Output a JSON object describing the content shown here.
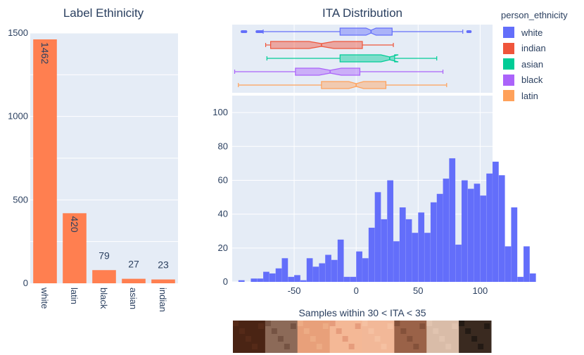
{
  "colors": {
    "plot_bg": "#e5ecf6",
    "grid": "#ffffff",
    "text": "#2a3f5f",
    "bar_orange": "#ff7f50",
    "hist_blue": "#636efa",
    "white": "#636efa",
    "indian": "#ef553b",
    "asian": "#00cc96",
    "black": "#ab63fa",
    "latin": "#ffa15a"
  },
  "legend": {
    "title": "person_ethnicity",
    "items": [
      {
        "label": "white",
        "color": "#636efa"
      },
      {
        "label": "indian",
        "color": "#ef553b"
      },
      {
        "label": "asian",
        "color": "#00cc96"
      },
      {
        "label": "black",
        "color": "#ab63fa"
      },
      {
        "label": "latin",
        "color": "#ffa15a"
      }
    ]
  },
  "chart_data": [
    {
      "type": "bar",
      "title": "Label Ethinicity",
      "categories": [
        "white",
        "latin",
        "black",
        "asian",
        "indian"
      ],
      "values": [
        1462,
        420,
        79,
        27,
        23
      ],
      "ylim": [
        0,
        1500
      ],
      "yticks": [
        0,
        500,
        1000,
        1500
      ]
    },
    {
      "type": "box",
      "title": "ITA Distribution",
      "orientation": "horizontal",
      "series": [
        {
          "name": "white",
          "min": -75,
          "q1": -13,
          "median": 12,
          "q3": 29,
          "max": 86,
          "notch": [
            8,
            16
          ],
          "outliers": [
            -92,
            -91,
            -90,
            -89,
            -80,
            -79,
            -78,
            -77,
            -76,
            90,
            91,
            92
          ]
        },
        {
          "name": "indian",
          "min": -73,
          "q1": -69,
          "median": -28,
          "q3": 5,
          "max": 30,
          "notch": [
            -38,
            -18
          ]
        },
        {
          "name": "asian",
          "min": -72,
          "q1": -13,
          "median": 27,
          "q3": 31,
          "max": 65,
          "notch": [
            20,
            34
          ]
        },
        {
          "name": "black",
          "min": -98,
          "q1": -49,
          "median": -21,
          "q3": 3,
          "max": 70,
          "notch": [
            -30,
            -12
          ]
        },
        {
          "name": "latin",
          "min": -95,
          "q1": -28,
          "median": 0,
          "q3": 24,
          "max": 73,
          "notch": [
            -6,
            6
          ]
        }
      ]
    },
    {
      "type": "histogram",
      "xlim": [
        -100,
        110
      ],
      "ylim": [
        0,
        110
      ],
      "xticks": [
        -50,
        0,
        50,
        100
      ],
      "yticks": [
        0,
        20,
        40,
        60,
        80,
        100
      ],
      "bin_width": 5,
      "bin_start": -100,
      "counts": [
        0,
        1,
        0,
        2,
        2,
        6,
        5,
        8,
        14,
        3,
        4,
        1,
        14,
        9,
        11,
        16,
        13,
        25,
        3,
        3,
        18,
        14,
        32,
        53,
        37,
        60,
        24,
        44,
        37,
        29,
        41,
        29,
        47,
        52,
        61,
        73,
        22,
        60,
        55,
        58,
        51,
        64,
        71,
        63,
        21,
        44,
        3,
        21,
        5
      ]
    },
    {
      "type": "image-strip",
      "title": "Samples within 30 < ITA < 35"
    }
  ]
}
